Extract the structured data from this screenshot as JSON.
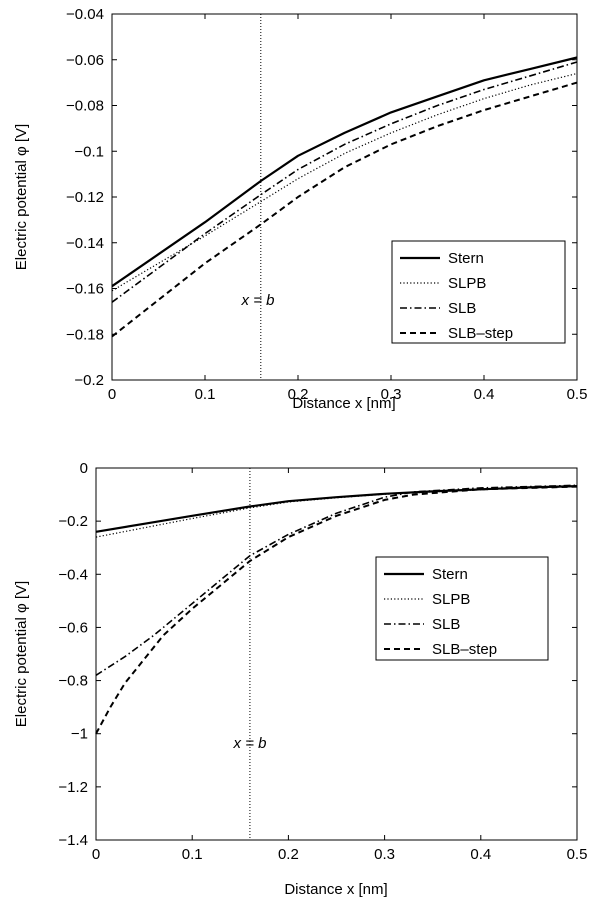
{
  "chart_data": [
    {
      "type": "line",
      "xlabel": "Distance x [nm]",
      "ylabel": "Electric potential φ [V]",
      "xlim": [
        0,
        0.5
      ],
      "ylim": [
        -0.2,
        -0.04
      ],
      "x_ticks": [
        "0",
        "0.1",
        "0.2",
        "0.3",
        "0.4",
        "0.5"
      ],
      "y_ticks": [
        "−0.2",
        "−0.18",
        "−0.16",
        "−0.14",
        "−0.12",
        "−0.1",
        "−0.08",
        "−0.06",
        "−0.04"
      ],
      "x_tick_values": [
        0,
        0.1,
        0.2,
        0.3,
        0.4,
        0.5
      ],
      "y_tick_values": [
        -0.2,
        -0.18,
        -0.16,
        -0.14,
        -0.12,
        -0.1,
        -0.08,
        -0.06,
        -0.04
      ],
      "legend_position": "right",
      "annotation": {
        "text": "x = b",
        "x": 0.16
      },
      "series": [
        {
          "name": "Stern",
          "style": "solid",
          "x": [
            0,
            0.05,
            0.1,
            0.16,
            0.2,
            0.25,
            0.3,
            0.35,
            0.4,
            0.45,
            0.5
          ],
          "y": [
            -0.159,
            -0.145,
            -0.131,
            -0.113,
            -0.102,
            -0.092,
            -0.083,
            -0.076,
            -0.069,
            -0.064,
            -0.059
          ]
        },
        {
          "name": "SLPB",
          "style": "dotted",
          "x": [
            0,
            0.05,
            0.1,
            0.16,
            0.2,
            0.25,
            0.3,
            0.35,
            0.4,
            0.45,
            0.5
          ],
          "y": [
            -0.161,
            -0.149,
            -0.137,
            -0.122,
            -0.112,
            -0.101,
            -0.092,
            -0.084,
            -0.077,
            -0.071,
            -0.066
          ]
        },
        {
          "name": "SLB",
          "style": "dashdot",
          "x": [
            0,
            0.05,
            0.1,
            0.16,
            0.2,
            0.25,
            0.3,
            0.35,
            0.4,
            0.45,
            0.5
          ],
          "y": [
            -0.166,
            -0.151,
            -0.136,
            -0.119,
            -0.108,
            -0.097,
            -0.088,
            -0.08,
            -0.073,
            -0.067,
            -0.061
          ]
        },
        {
          "name": "SLB–step",
          "style": "dashed",
          "x": [
            0,
            0.05,
            0.1,
            0.16,
            0.2,
            0.25,
            0.3,
            0.35,
            0.4,
            0.45,
            0.5
          ],
          "y": [
            -0.181,
            -0.165,
            -0.149,
            -0.132,
            -0.12,
            -0.107,
            -0.097,
            -0.089,
            -0.082,
            -0.076,
            -0.07
          ]
        }
      ]
    },
    {
      "type": "line",
      "xlabel": "Distance x [nm]",
      "ylabel": "Electric potential φ [V]",
      "xlim": [
        0,
        0.5
      ],
      "ylim": [
        -1.4,
        0
      ],
      "x_ticks": [
        "0",
        "0.1",
        "0.2",
        "0.3",
        "0.4",
        "0.5"
      ],
      "y_ticks": [
        "−1.4",
        "−1.2",
        "−1",
        "−0.8",
        "−0.6",
        "−0.4",
        "−0.2",
        "0"
      ],
      "x_tick_values": [
        0,
        0.1,
        0.2,
        0.3,
        0.4,
        0.5
      ],
      "y_tick_values": [
        -1.4,
        -1.2,
        -1.0,
        -0.8,
        -0.6,
        -0.4,
        -0.2,
        0
      ],
      "legend_position": "right",
      "annotation": {
        "text": "x = b",
        "x": 0.16
      },
      "series": [
        {
          "name": "Stern",
          "style": "solid",
          "x": [
            0,
            0.05,
            0.1,
            0.16,
            0.2,
            0.25,
            0.3,
            0.35,
            0.4,
            0.45,
            0.5
          ],
          "y": [
            -0.24,
            -0.21,
            -0.18,
            -0.145,
            -0.125,
            -0.11,
            -0.097,
            -0.088,
            -0.08,
            -0.073,
            -0.068
          ]
        },
        {
          "name": "SLPB",
          "style": "dotted",
          "x": [
            0,
            0.05,
            0.1,
            0.16,
            0.2,
            0.25,
            0.3,
            0.35,
            0.4,
            0.45,
            0.5
          ],
          "y": [
            -0.26,
            -0.225,
            -0.19,
            -0.15,
            -0.128,
            -0.112,
            -0.099,
            -0.09,
            -0.082,
            -0.075,
            -0.07
          ]
        },
        {
          "name": "SLB",
          "style": "dashdot",
          "x": [
            0,
            0.03,
            0.06,
            0.09,
            0.12,
            0.16,
            0.2,
            0.25,
            0.3,
            0.33,
            0.4,
            0.5
          ],
          "y": [
            -0.78,
            -0.71,
            -0.63,
            -0.54,
            -0.45,
            -0.33,
            -0.25,
            -0.17,
            -0.11,
            -0.09,
            -0.075,
            -0.065
          ]
        },
        {
          "name": "SLB–step",
          "style": "dashed",
          "x": [
            0,
            0.015,
            0.03,
            0.05,
            0.07,
            0.1,
            0.13,
            0.16,
            0.2,
            0.25,
            0.3,
            0.33,
            0.4,
            0.5
          ],
          "y": [
            -1.0,
            -0.9,
            -0.81,
            -0.72,
            -0.63,
            -0.53,
            -0.44,
            -0.35,
            -0.26,
            -0.18,
            -0.12,
            -0.1,
            -0.08,
            -0.07
          ]
        }
      ]
    }
  ]
}
